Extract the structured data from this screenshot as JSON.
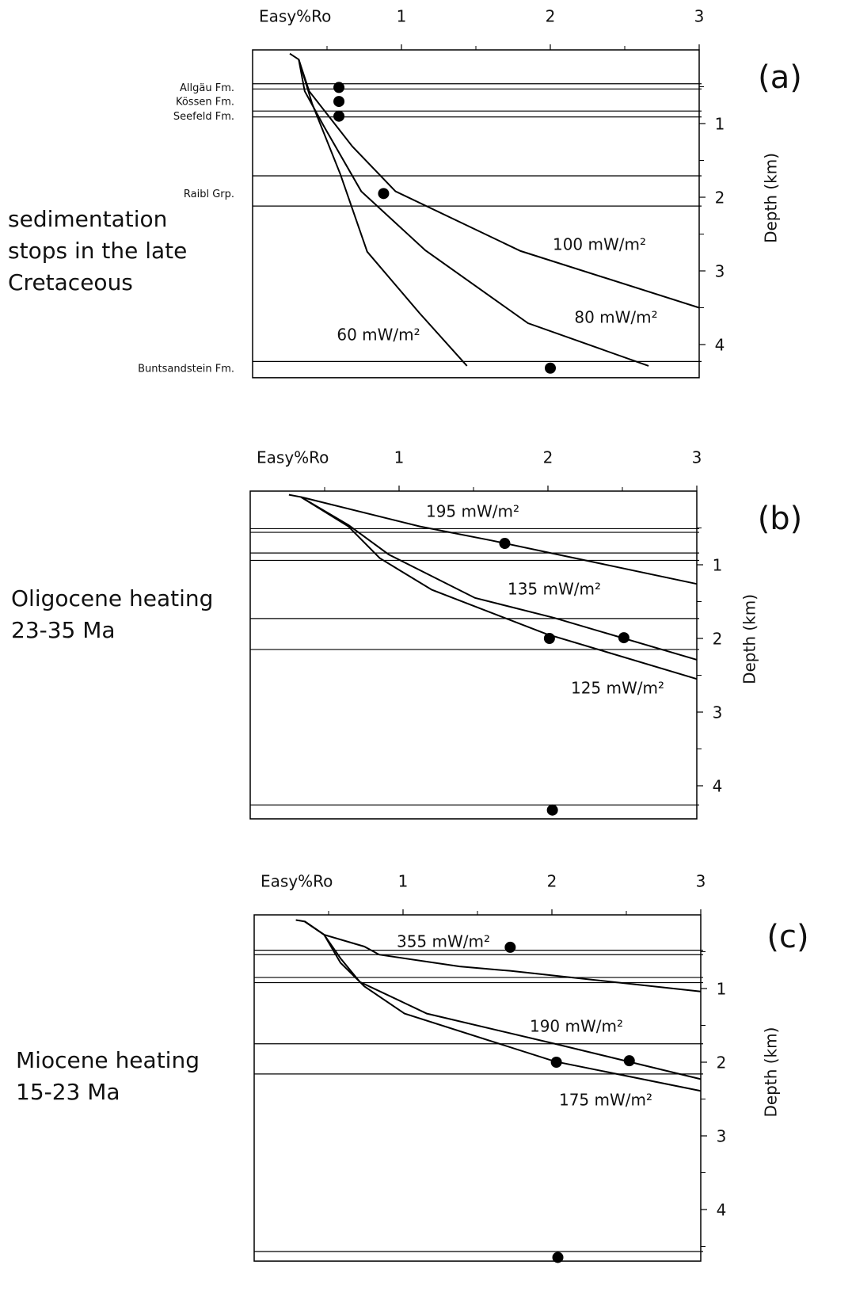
{
  "chart_data": [
    {
      "type": "line",
      "panel_label": "(a)",
      "note": [
        "sedimentation",
        "stops in the late",
        "Cretaceous"
      ],
      "x_label": "Easy%Ro",
      "y_label": "Depth (km)",
      "color": "#000000",
      "xlim": [
        0,
        3
      ],
      "xticks": [
        1,
        2,
        3
      ],
      "xminorticks": [
        0.5,
        1.5,
        2.5
      ],
      "ylim": [
        0,
        4.45
      ],
      "yticks": [
        1,
        2,
        3,
        4
      ],
      "yminorticks": [
        0.5,
        1.5,
        2.5,
        3.5
      ],
      "layer_boundaries": [
        0.46,
        0.53,
        0.83,
        0.91,
        1.71,
        2.12,
        4.23
      ],
      "series": [
        {
          "name": "60 mW/m²",
          "x": [
            0.25,
            0.31,
            0.4,
            0.59,
            0.77,
            1.12,
            1.44
          ],
          "values": [
            0.05,
            0.13,
            0.73,
            1.69,
            2.74,
            3.57,
            4.29
          ]
        },
        {
          "name": "80 mW/m²",
          "x": [
            0.31,
            0.35,
            0.48,
            0.73,
            1.16,
            1.85,
            2.66
          ],
          "values": [
            0.13,
            0.56,
            1.04,
            1.92,
            2.72,
            3.71,
            4.29
          ]
        },
        {
          "name": "100 mW/m²",
          "x": [
            0.31,
            0.38,
            0.67,
            0.96,
            1.8,
            3.0
          ],
          "values": [
            0.13,
            0.56,
            1.31,
            1.92,
            2.73,
            3.5
          ]
        }
      ],
      "samples": {
        "labels": [
          "Allgäu Fm.",
          "Kössen Fm.",
          "Seefeld Fm.",
          "Raibl Grp.",
          "Buntsandstein Fm."
        ],
        "x": [
          0.58,
          0.58,
          0.58,
          0.88,
          2.0
        ],
        "values": [
          0.51,
          0.7,
          0.9,
          1.95,
          4.32
        ]
      }
    },
    {
      "type": "line",
      "panel_label": "(b)",
      "note": [
        "Oligocene heating",
        "23-35 Ma"
      ],
      "x_label": "Easy%Ro",
      "y_label": "Depth (km)",
      "color": "#000000",
      "xlim": [
        0,
        3
      ],
      "xticks": [
        1,
        2,
        3
      ],
      "xminorticks": [
        0.5,
        1.5,
        2.5
      ],
      "ylim": [
        0,
        4.45
      ],
      "yticks": [
        1,
        2,
        3,
        4
      ],
      "yminorticks": [
        0.5,
        1.5,
        2.5,
        3.5
      ],
      "layer_boundaries": [
        0.51,
        0.56,
        0.84,
        0.94,
        1.73,
        2.15,
        4.26
      ],
      "series": [
        {
          "name": "195 mW/m²",
          "x": [
            0.26,
            0.34,
            1.14,
            1.62,
            3.0
          ],
          "values": [
            0.05,
            0.08,
            0.48,
            0.67,
            1.26
          ]
        },
        {
          "name": "135 mW/m²",
          "x": [
            0.34,
            0.66,
            0.93,
            1.51,
            2.04,
            3.0
          ],
          "values": [
            0.08,
            0.46,
            0.86,
            1.45,
            1.72,
            2.29
          ]
        },
        {
          "name": "125 mW/m²",
          "x": [
            0.34,
            0.66,
            0.87,
            1.22,
            1.99,
            3.0
          ],
          "values": [
            0.08,
            0.48,
            0.91,
            1.34,
            1.94,
            2.55
          ]
        }
      ],
      "samples": {
        "x": [
          1.71,
          2.01,
          2.51,
          2.03
        ],
        "values": [
          0.71,
          2.0,
          1.99,
          4.33
        ]
      }
    },
    {
      "type": "line",
      "panel_label": "(c)",
      "note": [
        "Miocene heating",
        "15-23 Ma"
      ],
      "x_label": "Easy%Ro",
      "y_label": "Depth (km)",
      "color": "#000000",
      "xlim": [
        0,
        3
      ],
      "xticks": [
        1,
        2,
        3
      ],
      "xminorticks": [
        0.5,
        1.5,
        2.5
      ],
      "ylim": [
        0,
        4.7
      ],
      "yticks": [
        1,
        2,
        3,
        4
      ],
      "yminorticks": [
        0.5,
        1.5,
        2.5,
        3.5,
        4.5
      ],
      "layer_boundaries": [
        0.48,
        0.54,
        0.85,
        0.92,
        1.75,
        2.16,
        4.57
      ],
      "series": [
        {
          "name": "355 mW/m²",
          "x": [
            0.28,
            0.34,
            0.47,
            0.74,
            0.84,
            1.38,
            1.72,
            3.0
          ],
          "values": [
            0.07,
            0.09,
            0.27,
            0.43,
            0.54,
            0.7,
            0.76,
            1.04
          ]
        },
        {
          "name": "190 mW/m²",
          "x": [
            0.34,
            0.47,
            0.58,
            0.71,
            1.16,
            2.02,
            3.0
          ],
          "values": [
            0.09,
            0.27,
            0.59,
            0.91,
            1.34,
            1.75,
            2.23
          ]
        },
        {
          "name": "175 mW/m²",
          "x": [
            0.34,
            0.47,
            0.58,
            0.74,
            1.01,
            2.02,
            3.0
          ],
          "values": [
            0.09,
            0.27,
            0.65,
            0.97,
            1.34,
            1.99,
            2.39
          ]
        }
      ],
      "samples": {
        "x": [
          1.72,
          2.03,
          2.52,
          2.04
        ],
        "values": [
          0.44,
          2.0,
          1.98,
          4.65
        ]
      }
    }
  ]
}
